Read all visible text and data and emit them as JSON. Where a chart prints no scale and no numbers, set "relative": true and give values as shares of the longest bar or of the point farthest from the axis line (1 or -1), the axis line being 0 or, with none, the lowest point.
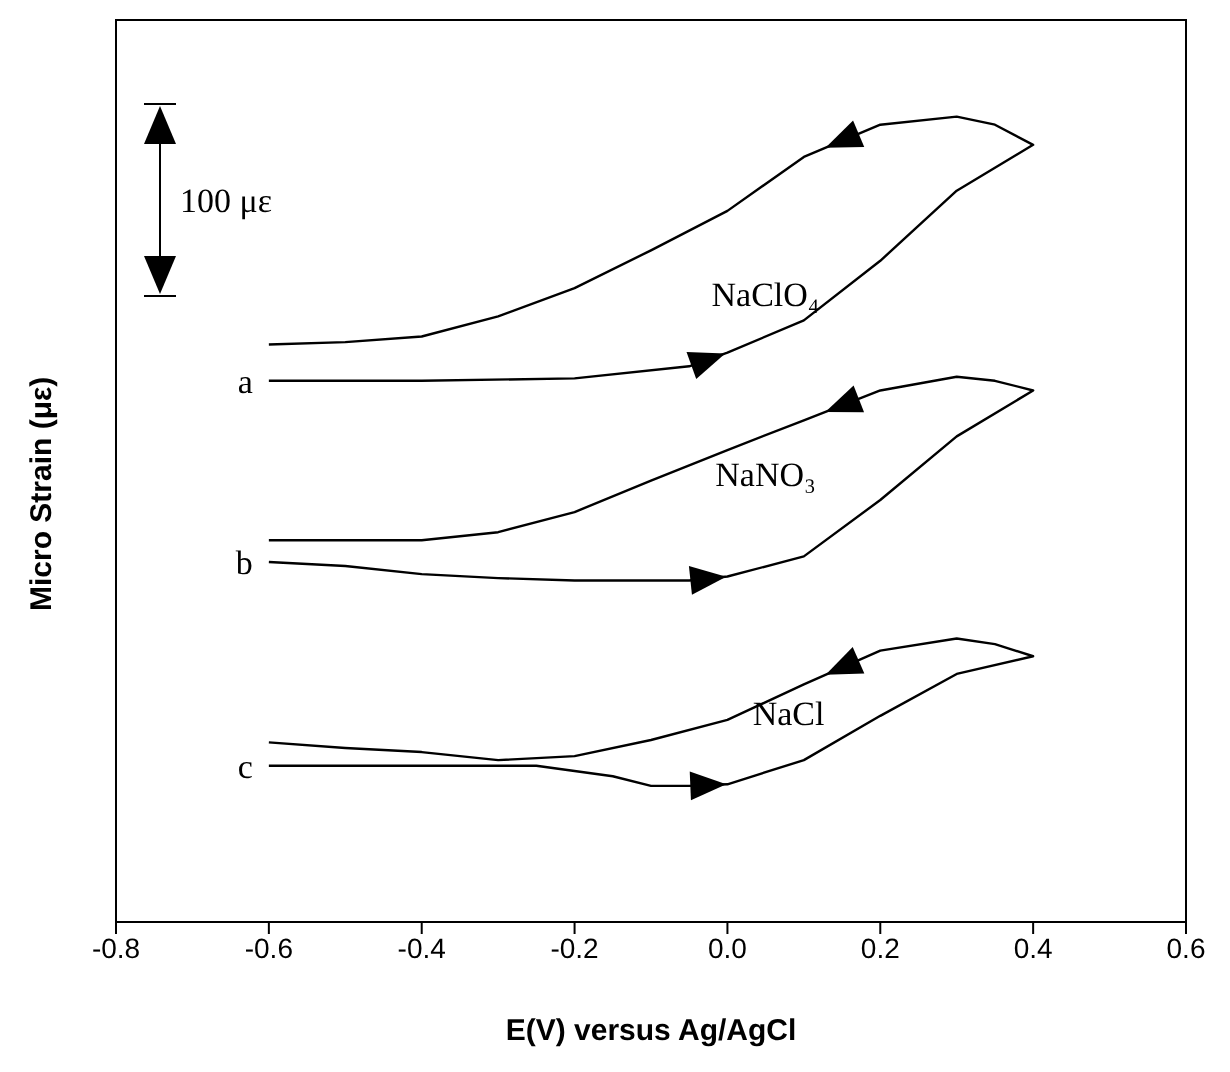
{
  "chart_data": {
    "type": "line",
    "relative": true,
    "xlabel": "E(V) versus Ag/AgCl",
    "ylabel": "Micro Strain (με)",
    "xlim": [
      -0.8,
      0.6
    ],
    "xticks": [
      {
        "value": -0.8,
        "label": "-0.8"
      },
      {
        "value": -0.6,
        "label": "-0.6"
      },
      {
        "value": -0.4,
        "label": "-0.4"
      },
      {
        "value": -0.2,
        "label": "-0.2"
      },
      {
        "value": 0,
        "label": "0.0"
      },
      {
        "value": 0.2,
        "label": "0.2"
      },
      {
        "value": 0.4,
        "label": "0.4"
      },
      {
        "value": 0.6,
        "label": "0.6"
      }
    ],
    "grid": false,
    "legend": false,
    "marker": "none",
    "line_style": "solid",
    "series": [
      {
        "name": "a",
        "color": "#000000",
        "x": [
          -0.6,
          -0.4,
          -0.2,
          -0.05,
          0,
          0.1,
          0.2,
          0.3,
          0.4,
          0.35,
          0.3,
          0.2,
          0.1,
          0,
          -0.1,
          -0.2,
          -0.3,
          -0.4,
          -0.5,
          -0.6
        ],
        "values": [
          0.672,
          0.672,
          0.675,
          0.69,
          0.707,
          0.747,
          0.821,
          0.908,
          0.965,
          0.99,
          1,
          0.99,
          0.95,
          0.883,
          0.834,
          0.787,
          0.752,
          0.727,
          0.72,
          0.717
        ]
      },
      {
        "name": "b",
        "color": "#000000",
        "x": [
          -0.6,
          -0.5,
          -0.4,
          -0.3,
          -0.2,
          -0.05,
          0,
          0.1,
          0.2,
          0.3,
          0.4,
          0.35,
          0.3,
          0.2,
          0.1,
          0,
          -0.1,
          -0.2,
          -0.3,
          -0.4,
          -0.5,
          -0.6
        ],
        "values": [
          0.447,
          0.442,
          0.432,
          0.427,
          0.424,
          0.424,
          0.429,
          0.454,
          0.524,
          0.603,
          0.66,
          0.672,
          0.677,
          0.66,
          0.623,
          0.586,
          0.548,
          0.509,
          0.484,
          0.474,
          0.474,
          0.474
        ]
      },
      {
        "name": "c",
        "color": "#000000",
        "x": [
          -0.6,
          -0.4,
          -0.25,
          -0.15,
          -0.1,
          -0.05,
          0,
          0.1,
          0.2,
          0.3,
          0.4,
          0.35,
          0.3,
          0.2,
          0.1,
          0,
          -0.1,
          -0.2,
          -0.3,
          -0.4,
          -0.5,
          -0.6
        ],
        "values": [
          0.194,
          0.194,
          0.194,
          0.181,
          0.169,
          0.169,
          0.171,
          0.201,
          0.256,
          0.308,
          0.33,
          0.345,
          0.352,
          0.337,
          0.295,
          0.251,
          0.226,
          0.206,
          0.201,
          0.211,
          0.216,
          0.223
        ]
      }
    ],
    "annotations": [
      "100 με",
      "NaClO₄",
      "NaNO₃",
      "NaCl"
    ]
  }
}
